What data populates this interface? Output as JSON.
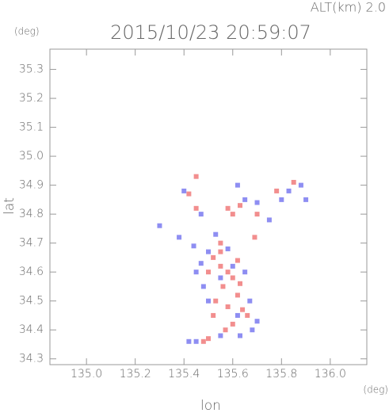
{
  "chart_data": {
    "type": "scatter",
    "title": "2015/10/23 20:59:07",
    "altitude_label": "ALT(km) 2.0",
    "x_label": "lon",
    "y_label": "lat",
    "x_unit": "(deg)",
    "y_unit": "(deg)",
    "xlim": [
      134.85,
      136.15
    ],
    "ylim": [
      34.28,
      35.37
    ],
    "xticks": [
      {
        "value": 135,
        "label": "135.0"
      },
      135.2,
      135.4,
      135.6,
      135.8,
      {
        "value": 136,
        "label": "136.0"
      }
    ],
    "yticks": [
      34.3,
      34.4,
      34.5,
      34.6,
      34.7,
      34.8,
      34.9,
      {
        "value": 35,
        "label": "35.0"
      },
      35.1,
      35.2,
      35.3
    ],
    "series": [
      {
        "color": "#f07a7a",
        "x": [
          135.52,
          135.55,
          135.58,
          135.6,
          135.56,
          135.62,
          135.58,
          135.64,
          135.55,
          135.62,
          135.5,
          135.53,
          135.66,
          135.6,
          135.5,
          135.48,
          135.57,
          135.6,
          135.58,
          135.63,
          135.78,
          135.85,
          135.7,
          135.45,
          135.42,
          135.45,
          135.69,
          135.55,
          135.63,
          135.52
        ],
        "values": [
          34.65,
          34.62,
          34.6,
          34.58,
          34.55,
          34.52,
          34.48,
          34.47,
          34.67,
          34.64,
          34.6,
          34.5,
          34.45,
          34.42,
          34.37,
          34.36,
          34.4,
          34.8,
          34.82,
          34.83,
          34.88,
          34.91,
          34.8,
          34.82,
          34.87,
          34.93,
          34.72,
          34.7,
          34.56,
          34.45
        ]
      },
      {
        "color": "#7a7af0",
        "x": [
          135.5,
          135.47,
          135.45,
          135.48,
          135.55,
          135.6,
          135.65,
          135.67,
          135.62,
          135.5,
          135.44,
          135.58,
          135.7,
          135.68,
          135.63,
          135.55,
          135.45,
          135.42,
          135.65,
          135.7,
          135.8,
          135.88,
          135.83,
          135.75,
          135.47,
          135.4,
          135.3,
          135.38,
          135.62,
          135.53,
          135.9
        ],
        "values": [
          34.67,
          34.63,
          34.6,
          34.55,
          34.58,
          34.62,
          34.6,
          34.5,
          34.45,
          34.5,
          34.69,
          34.68,
          34.43,
          34.4,
          34.38,
          34.38,
          34.36,
          34.36,
          34.85,
          34.84,
          34.85,
          34.9,
          34.88,
          34.78,
          34.8,
          34.88,
          34.76,
          34.72,
          34.9,
          34.73,
          34.85
        ]
      }
    ]
  }
}
